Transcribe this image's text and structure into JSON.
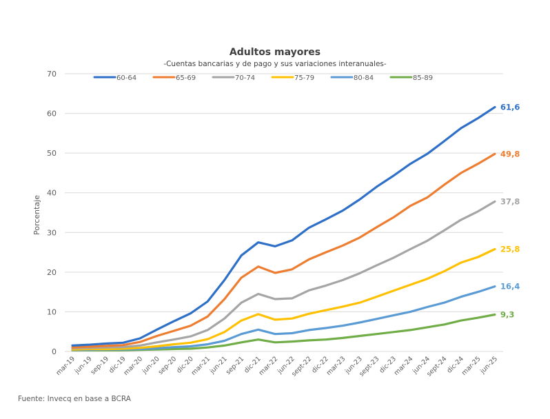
{
  "chart_data": {
    "type": "line",
    "title": "Adultos mayores",
    "subtitle": "-Cuentas bancarias y de pago y sus variaciones interanuales-",
    "xlabel": "",
    "ylabel": "Porcentaje",
    "ylim": [
      0,
      70
    ],
    "yticks": [
      0,
      10,
      20,
      30,
      40,
      50,
      60,
      70
    ],
    "grid": true,
    "legend": "top",
    "categories": [
      "mar-19",
      "jun-19",
      "sep-19",
      "dic-19",
      "mar-20",
      "jun-20",
      "sep-20",
      "dic-20",
      "mar-21",
      "jun-21",
      "sep-21",
      "dic-21",
      "mar-22",
      "jun-22",
      "sept-22",
      "dic-22",
      "mar-23",
      "jun-23",
      "sept-23",
      "dic-23",
      "mar-24",
      "jun-24",
      "sept-24",
      "dic-24",
      "mar-25",
      "jun-25"
    ],
    "series": [
      {
        "name": "60-64",
        "color": "#2E6FC7",
        "end_label": "61,6",
        "values": [
          1.5,
          1.7,
          2.0,
          2.2,
          3.3,
          5.5,
          7.6,
          9.6,
          12.6,
          18.0,
          24.2,
          27.5,
          26.5,
          28.0,
          31.2,
          33.3,
          35.5,
          38.3,
          41.5,
          44.3,
          47.3,
          49.8,
          53.0,
          56.3,
          58.8,
          61.6
        ]
      },
      {
        "name": "65-69",
        "color": "#ED7D31",
        "end_label": "49,8",
        "values": [
          1.0,
          1.2,
          1.4,
          1.6,
          2.4,
          3.9,
          5.2,
          6.5,
          8.8,
          13.2,
          18.6,
          21.4,
          19.8,
          20.7,
          23.2,
          25.0,
          26.7,
          28.7,
          31.3,
          33.8,
          36.7,
          38.8,
          42.0,
          45.0,
          47.3,
          49.8
        ]
      },
      {
        "name": "70-74",
        "color": "#A5A5A5",
        "end_label": "37,8",
        "values": [
          0.8,
          0.9,
          1.0,
          1.1,
          1.5,
          2.3,
          3.0,
          3.8,
          5.4,
          8.3,
          12.3,
          14.5,
          13.2,
          13.4,
          15.4,
          16.6,
          18.0,
          19.7,
          21.7,
          23.6,
          25.8,
          27.9,
          30.5,
          33.2,
          35.3,
          37.8
        ]
      },
      {
        "name": "75-79",
        "color": "#FFC000",
        "end_label": "25,8",
        "values": [
          0.5,
          0.6,
          0.6,
          0.7,
          0.9,
          1.3,
          1.8,
          2.2,
          3.1,
          4.9,
          7.8,
          9.4,
          8.0,
          8.3,
          9.5,
          10.4,
          11.3,
          12.3,
          13.8,
          15.3,
          16.8,
          18.3,
          20.2,
          22.4,
          23.8,
          25.8
        ]
      },
      {
        "name": "80-84",
        "color": "#5B9BD5",
        "end_label": "16,4",
        "values": [
          0.4,
          0.4,
          0.5,
          0.5,
          0.6,
          0.8,
          1.1,
          1.3,
          1.8,
          2.7,
          4.4,
          5.5,
          4.4,
          4.6,
          5.4,
          5.9,
          6.5,
          7.3,
          8.2,
          9.1,
          10.0,
          11.2,
          12.3,
          13.8,
          15.0,
          16.4
        ]
      },
      {
        "name": "85-89",
        "color": "#70AD47",
        "end_label": "9,3",
        "values": [
          0.3,
          0.3,
          0.3,
          0.3,
          0.4,
          0.5,
          0.6,
          0.7,
          1.0,
          1.5,
          2.3,
          3.0,
          2.3,
          2.5,
          2.8,
          3.0,
          3.4,
          3.9,
          4.4,
          4.9,
          5.4,
          6.1,
          6.8,
          7.8,
          8.5,
          9.3
        ]
      }
    ]
  },
  "source": "Fuente: Invecq en base a BCRA"
}
